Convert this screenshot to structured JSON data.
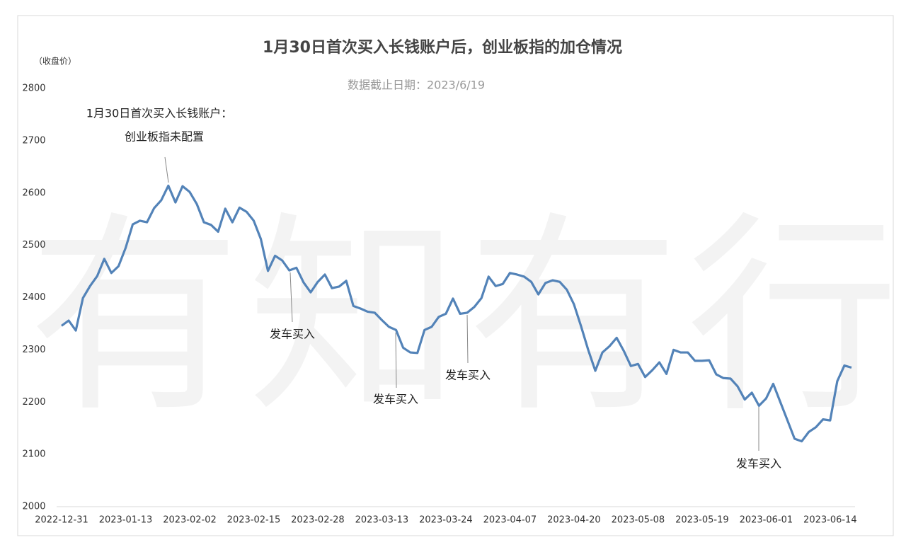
{
  "chart_data": {
    "type": "line",
    "title": "1月30日首次买入长钱账户后，创业板指的加仓情况",
    "subtitle": "数据截止日期：2023/6/19",
    "y_label": "（收盘价）",
    "watermark": "有知有行",
    "annotations": [
      "1月30日首次买入长钱账户：",
      "创业板指未配置",
      "发车买入",
      "发车买入",
      "发车买入",
      "发车买入"
    ],
    "categories": [
      "2022-12-31",
      null,
      null,
      null,
      null,
      null,
      null,
      null,
      null,
      "2023-01-13",
      null,
      null,
      null,
      null,
      null,
      null,
      null,
      null,
      "2023-02-02",
      null,
      null,
      null,
      null,
      null,
      null,
      null,
      null,
      "2023-02-15",
      null,
      null,
      null,
      null,
      null,
      null,
      null,
      null,
      "2023-02-28",
      null,
      null,
      null,
      null,
      null,
      null,
      null,
      null,
      "2023-03-13",
      null,
      null,
      null,
      null,
      null,
      null,
      null,
      null,
      "2023-03-24",
      null,
      null,
      null,
      null,
      null,
      null,
      null,
      null,
      "2023-04-07",
      null,
      null,
      null,
      null,
      null,
      null,
      null,
      null,
      "2023-04-20",
      null,
      null,
      null,
      null,
      null,
      null,
      null,
      null,
      "2023-05-08",
      null,
      null,
      null,
      null,
      null,
      null,
      null,
      null,
      "2023-05-19",
      null,
      null,
      null,
      null,
      null,
      null,
      null,
      null,
      "2023-06-01",
      null,
      null,
      null,
      null,
      null,
      null,
      null,
      null,
      "2023-06-14",
      null,
      null,
      null
    ],
    "series": [
      {
        "name": "创业板指",
        "color": "#5383b8",
        "values": [
          2346,
          2356,
          2337,
          2399,
          2422,
          2441,
          2474,
          2447,
          2460,
          2495,
          2540,
          2547,
          2544,
          2571,
          2586,
          2614,
          2582,
          2613,
          2602,
          2579,
          2544,
          2539,
          2526,
          2570,
          2544,
          2572,
          2564,
          2547,
          2512,
          2451,
          2480,
          2471,
          2452,
          2457,
          2429,
          2410,
          2430,
          2444,
          2418,
          2421,
          2432,
          2384,
          2379,
          2373,
          2371,
          2357,
          2344,
          2338,
          2304,
          2295,
          2294,
          2338,
          2344,
          2363,
          2369,
          2398,
          2369,
          2371,
          2382,
          2399,
          2440,
          2422,
          2426,
          2447,
          2444,
          2440,
          2430,
          2406,
          2428,
          2433,
          2430,
          2415,
          2387,
          2345,
          2300,
          2260,
          2295,
          2307,
          2323,
          2298,
          2269,
          2273,
          2248,
          2261,
          2276,
          2254,
          2300,
          2295,
          2295,
          2279,
          2279,
          2280,
          2253,
          2246,
          2245,
          2230,
          2205,
          2218,
          2193,
          2207,
          2235,
          2200,
          2165,
          2130,
          2125,
          2143,
          2152,
          2167,
          2165,
          2240,
          2270,
          2266
        ]
      }
    ],
    "ylim": [
      2000,
      2800
    ],
    "yticks": [
      2000,
      2100,
      2200,
      2300,
      2400,
      2500,
      2600,
      2700,
      2800
    ],
    "grid": false
  }
}
